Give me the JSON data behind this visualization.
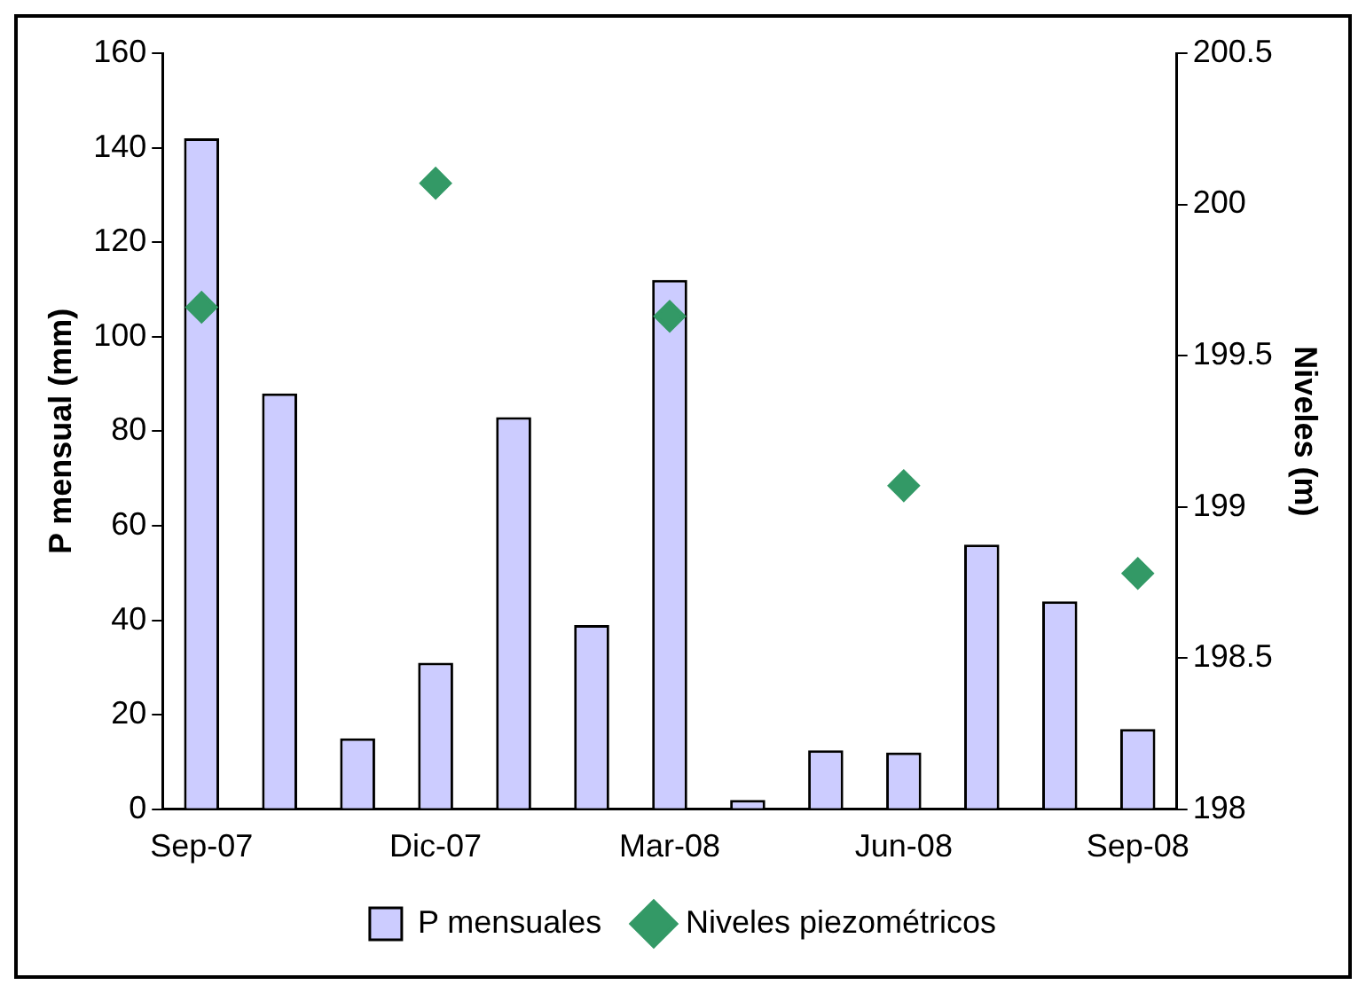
{
  "chart_data": {
    "type": "bar",
    "xlabel": null,
    "ylabel": "P mensual (mm)",
    "y2label": "Niveles (m)",
    "categories": [
      "Sep-07",
      null,
      null,
      "Dic-07",
      null,
      null,
      "Mar-08",
      null,
      null,
      "Jun-08",
      null,
      null,
      "Sep-08"
    ],
    "series": [
      {
        "name": "P mensuales",
        "color": "#ccccff",
        "values": [
          142,
          88,
          15,
          31,
          83,
          39,
          112,
          2,
          12.5,
          12,
          56,
          44,
          17
        ]
      },
      {
        "name": "Niveles piezométricos",
        "type": "scatter",
        "axis": "y2",
        "color": "#339966",
        "marker": "diamond",
        "values": [
          199.66,
          null,
          null,
          200.07,
          null,
          null,
          199.63,
          null,
          null,
          199.07,
          null,
          null,
          198.78
        ]
      }
    ],
    "ylim": [
      0,
      160
    ],
    "yticks": [
      0,
      20,
      40,
      60,
      80,
      100,
      120,
      140,
      160
    ],
    "y2lim": [
      198,
      200.5
    ],
    "y2ticks": [
      198,
      198.5,
      199,
      199.5,
      200,
      200.5
    ],
    "grid": false,
    "legend": "bottom"
  }
}
